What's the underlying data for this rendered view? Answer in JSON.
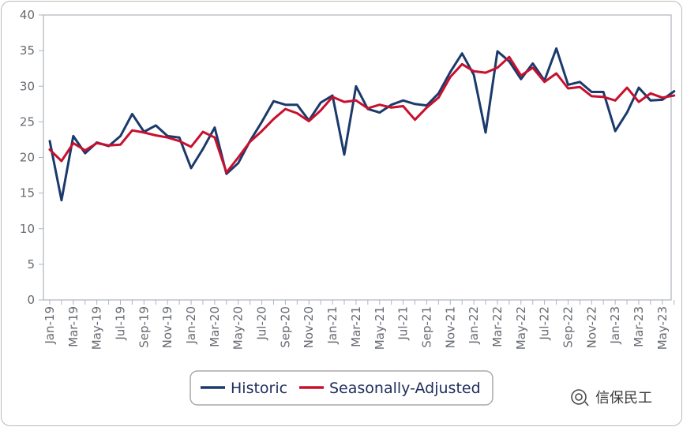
{
  "chart_data": {
    "type": "line",
    "title": "",
    "xlabel": "",
    "ylabel": "",
    "ylim": [
      0,
      40
    ],
    "yticks": [
      0,
      5,
      10,
      15,
      20,
      25,
      30,
      35,
      40
    ],
    "grid": false,
    "legend_position": "bottom-center",
    "x": [
      "Jan-19",
      "Feb-19",
      "Mar-19",
      "Apr-19",
      "May-19",
      "Jun-19",
      "Jul-19",
      "Aug-19",
      "Sep-19",
      "Oct-19",
      "Nov-19",
      "Dec-19",
      "Jan-20",
      "Feb-20",
      "Mar-20",
      "Apr-20",
      "May-20",
      "Jun-20",
      "Jul-20",
      "Aug-20",
      "Sep-20",
      "Oct-20",
      "Nov-20",
      "Dec-20",
      "Jan-21",
      "Feb-21",
      "Mar-21",
      "Apr-21",
      "May-21",
      "Jun-21",
      "Jul-21",
      "Aug-21",
      "Sep-21",
      "Oct-21",
      "Nov-21",
      "Dec-21",
      "Jan-22",
      "Feb-22",
      "Mar-22",
      "Apr-22",
      "May-22",
      "Jun-22",
      "Jul-22",
      "Aug-22",
      "Sep-22",
      "Oct-22",
      "Nov-22",
      "Dec-22",
      "Jan-23",
      "Feb-23",
      "Mar-23",
      "Apr-23",
      "May-23",
      "Jun-23"
    ],
    "x_tick_labels": [
      "Jan-19",
      "Mar-19",
      "May-19",
      "Jul-19",
      "Sep-19",
      "Nov-19",
      "Jan-20",
      "Mar-20",
      "May-20",
      "Jul-20",
      "Sep-20",
      "Nov-20",
      "Jan-21",
      "Mar-21",
      "May-21",
      "Jul-21",
      "Sep-21",
      "Nov-21",
      "Jan-22",
      "Mar-22",
      "May-22",
      "Jul-22",
      "Sep-22",
      "Nov-22",
      "Jan-23",
      "Mar-23",
      "May-23"
    ],
    "series": [
      {
        "name": "Historic",
        "color": "#1b3a6b",
        "values": [
          22.3,
          14.0,
          23.0,
          20.6,
          22.1,
          21.6,
          23.0,
          26.1,
          23.6,
          24.5,
          23.0,
          22.8,
          18.5,
          21.2,
          24.2,
          17.7,
          19.2,
          22.3,
          25.0,
          27.9,
          27.4,
          27.4,
          25.2,
          27.7,
          28.7,
          20.4,
          30.0,
          26.8,
          26.3,
          27.4,
          28.0,
          27.5,
          27.3,
          29.0,
          32.0,
          34.6,
          31.6,
          23.5,
          34.9,
          33.5,
          31.0,
          33.2,
          30.8,
          35.3,
          30.2,
          30.6,
          29.2,
          29.2,
          23.7,
          26.3,
          29.8,
          28.0,
          28.1,
          29.3
        ]
      },
      {
        "name": "Seasonally-Adjusted",
        "color": "#c8102e",
        "values": [
          21.1,
          19.5,
          22.0,
          21.0,
          22.0,
          21.7,
          21.8,
          23.8,
          23.5,
          23.1,
          22.8,
          22.3,
          21.5,
          23.6,
          22.8,
          17.9,
          20.0,
          22.2,
          23.7,
          25.4,
          26.8,
          26.2,
          25.1,
          26.6,
          28.5,
          27.8,
          28.0,
          26.9,
          27.4,
          27.0,
          27.2,
          25.3,
          27.0,
          28.4,
          31.3,
          33.1,
          32.1,
          31.9,
          32.6,
          34.1,
          31.5,
          32.6,
          30.6,
          31.8,
          29.7,
          29.9,
          28.6,
          28.5,
          28.0,
          29.8,
          27.8,
          29.0,
          28.4,
          28.7
        ]
      }
    ]
  },
  "legend": {
    "items": [
      {
        "label": "Historic",
        "color": "#1b3a6b"
      },
      {
        "label": "Seasonally-Adjusted",
        "color": "#c8102e"
      }
    ]
  },
  "watermark": {
    "text": "信保民工",
    "icon": "wechat-official-account-icon"
  }
}
